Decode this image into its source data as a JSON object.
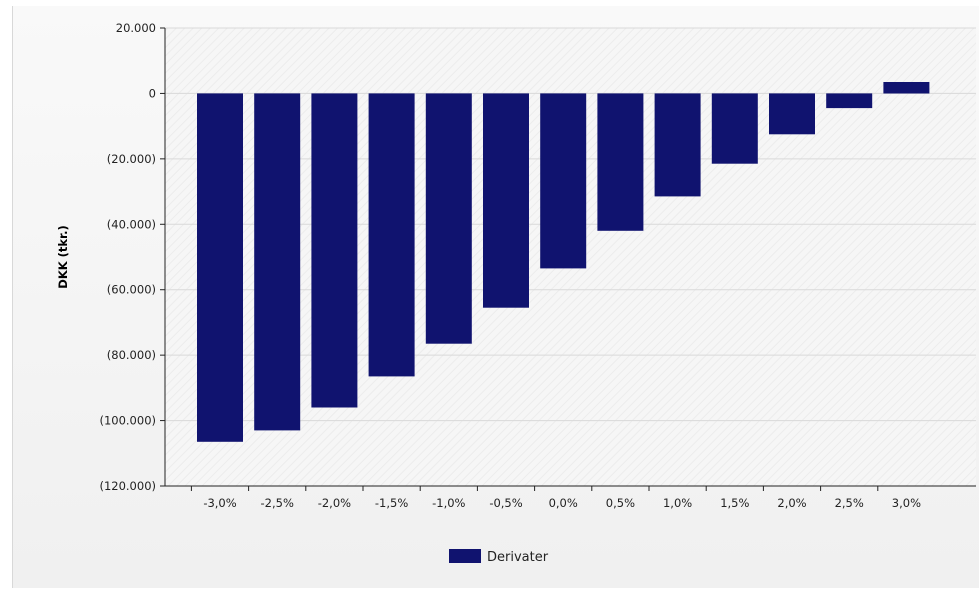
{
  "chart_data": {
    "type": "bar",
    "ylabel": "DKK (tkr.)",
    "categories": [
      "-3,0%",
      "-2,5%",
      "-2,0%",
      "-1,5%",
      "-1,0%",
      "-0,5%",
      "0,0%",
      "0,5%",
      "1,0%",
      "1,5%",
      "2,0%",
      "2,5%",
      "3,0%"
    ],
    "series": [
      {
        "name": "Derivater",
        "color": "#10136f",
        "values": [
          -106500,
          -103000,
          -96000,
          -86500,
          -76500,
          -65500,
          -53500,
          -42000,
          -31500,
          -21500,
          -12500,
          -4500,
          3500
        ]
      }
    ],
    "ylim": [
      -120000,
      20000
    ],
    "yticks": [
      20000,
      0,
      -20000,
      -40000,
      -60000,
      -80000,
      -100000,
      -120000
    ],
    "ytick_labels": [
      "20.000",
      "0",
      "(20.000)",
      "(40.000)",
      "(60.000)",
      "(80.000)",
      "(100.000)",
      "(120.000)"
    ],
    "grid": true,
    "legend": "bottom-center"
  }
}
